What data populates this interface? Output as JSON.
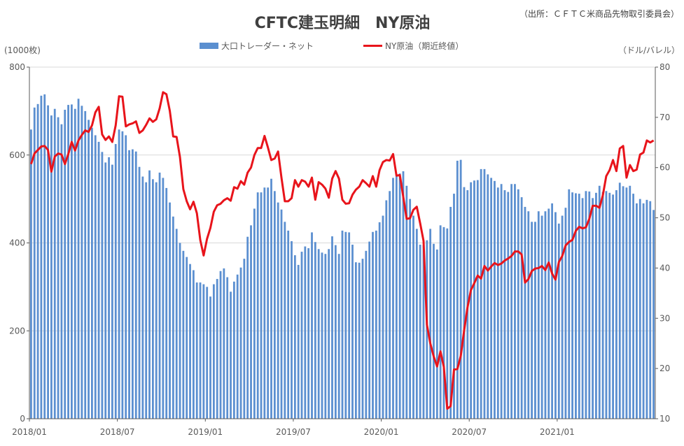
{
  "chart_data": {
    "type": "bar+line",
    "title": "CFTC建玉明細　NY原油",
    "source": "（出所：ＣＦＴＣ米商品先物取引委員会）",
    "y_left_unit": "(1000枚)",
    "y_right_unit": "（ドル/バレル）",
    "y_left_lim": [
      0,
      800
    ],
    "y_left_ticks": [
      "0",
      "200",
      "400",
      "600",
      "800"
    ],
    "y_right_lim": [
      10,
      80
    ],
    "y_right_ticks": [
      "10",
      "20",
      "30",
      "40",
      "50",
      "60",
      "70",
      "80"
    ],
    "x_tick_labels": [
      "2018/01",
      "2018/07",
      "2019/01",
      "2019/07",
      "2020/01",
      "2020/07",
      "2021/01"
    ],
    "x_tick_index": [
      0,
      26,
      52,
      78,
      104,
      130,
      156
    ],
    "grid": "horizontal",
    "legend_position": "top",
    "colors": {
      "bar": "#5B8FD0",
      "line": "#E8141B",
      "grid": "#D9D9D9",
      "axis": "#595959"
    },
    "series": [
      {
        "name": "大口トレーダー・ネット",
        "kind": "bar",
        "axis": "left",
        "values": [
          658,
          708,
          716,
          735,
          738,
          713,
          690,
          705,
          686,
          670,
          703,
          714,
          715,
          705,
          728,
          712,
          700,
          680,
          662,
          645,
          630,
          607,
          583,
          595,
          578,
          625,
          658,
          654,
          645,
          611,
          613,
          608,
          573,
          551,
          538,
          565,
          545,
          538,
          560,
          548,
          525,
          492,
          460,
          432,
          400,
          382,
          368,
          352,
          338,
          310,
          310,
          306,
          300,
          278,
          306,
          318,
          336,
          342,
          322,
          289,
          312,
          328,
          344,
          364,
          414,
          440,
          478,
          515,
          515,
          526,
          526,
          546,
          518,
          492,
          476,
          448,
          428,
          404,
          372,
          350,
          380,
          392,
          388,
          424,
          402,
          386,
          378,
          375,
          386,
          415,
          395,
          375,
          428,
          425,
          424,
          396,
          356,
          355,
          364,
          382,
          403,
          425,
          428,
          447,
          462,
          497,
          518,
          548,
          554,
          558,
          563,
          530,
          500,
          462,
          432,
          396,
          395,
          406,
          432,
          398,
          385,
          440,
          436,
          433,
          482,
          512,
          587,
          589,
          527,
          520,
          538,
          542,
          543,
          568,
          568,
          556,
          548,
          541,
          526,
          534,
          520,
          516,
          534,
          534,
          522,
          504,
          482,
          472,
          448,
          448,
          472,
          462,
          472,
          478,
          490,
          470,
          444,
          462,
          480,
          522,
          515,
          513,
          512,
          502,
          518,
          517,
          502,
          514,
          530,
          516,
          518,
          514,
          510,
          520,
          537,
          529,
          526,
          530,
          512,
          490,
          500,
          490,
          498,
          495,
          475
        ]
      },
      {
        "name": "NY原油（期近終値）",
        "kind": "line",
        "axis": "right",
        "values": [
          60.7,
          62.8,
          63.5,
          64.2,
          64.3,
          63.5,
          59.2,
          62.2,
          62.8,
          62.6,
          60.7,
          62.7,
          65.1,
          63.4,
          65.4,
          66.5,
          67.4,
          67.1,
          68.4,
          71.0,
          72.1,
          66.6,
          65.5,
          66.2,
          65.1,
          68.4,
          74.2,
          74.1,
          68.2,
          68.6,
          68.8,
          69.2,
          66.9,
          67.4,
          68.5,
          69.8,
          69.1,
          69.6,
          71.8,
          75.0,
          74.6,
          71.3,
          66.2,
          66.1,
          62.1,
          55.7,
          53.3,
          51.7,
          53.2,
          50.9,
          45.6,
          42.5,
          45.8,
          48.0,
          51.2,
          52.5,
          52.8,
          53.5,
          53.9,
          53.4,
          56.1,
          55.8,
          57.3,
          56.6,
          59.0,
          60.0,
          62.5,
          63.9,
          63.9,
          66.3,
          64.0,
          61.5,
          61.8,
          63.2,
          58.0,
          53.3,
          53.3,
          53.9,
          57.5,
          56.2,
          57.5,
          57.2,
          56.2,
          58.0,
          53.6,
          57.1,
          56.6,
          55.8,
          54.0,
          57.8,
          59.3,
          57.8,
          53.6,
          52.8,
          52.9,
          54.6,
          55.6,
          56.2,
          57.5,
          56.9,
          56.2,
          58.3,
          56.2,
          59.5,
          61.1,
          61.5,
          61.4,
          62.7,
          58.4,
          58.5,
          54.2,
          49.8,
          49.9,
          51.6,
          52.2,
          48.9,
          45.4,
          28.7,
          25.0,
          22.4,
          20.4,
          23.4,
          20.3,
          12.0,
          12.5,
          19.8,
          19.9,
          22.5,
          27.6,
          32.2,
          35.6,
          37.0,
          38.5,
          37.9,
          40.4,
          39.5,
          40.3,
          41.0,
          40.6,
          40.9,
          41.5,
          41.9,
          42.4,
          43.3,
          43.3,
          42.7,
          37.1,
          37.8,
          39.4,
          39.9,
          40.0,
          40.4,
          39.6,
          41.1,
          38.9,
          37.7,
          41.2,
          42.4,
          44.5,
          45.2,
          45.6,
          47.4,
          48.2,
          47.9,
          48.1,
          49.8,
          52.4,
          52.4,
          52.0,
          54.5,
          58.3,
          59.5,
          61.5,
          59.3,
          63.8,
          64.3,
          58.0,
          60.5,
          59.3,
          59.6,
          62.6,
          63.0,
          65.4,
          65.0,
          65.4
        ]
      }
    ]
  }
}
